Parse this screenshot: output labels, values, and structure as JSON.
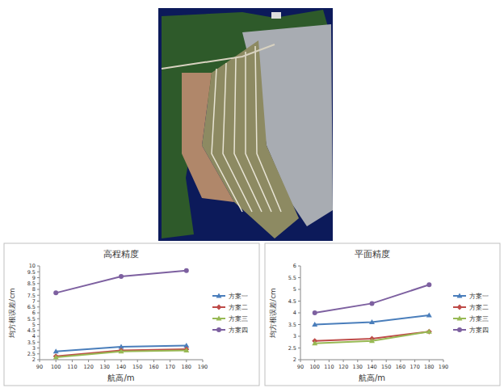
{
  "chart_data": [
    {
      "type": "line",
      "title": "高程精度",
      "x_label": "航高/m",
      "y_label": "均方根误差/cm",
      "x": [
        100,
        140,
        180
      ],
      "xlim": [
        90,
        190
      ],
      "xticks": [
        90,
        100,
        110,
        120,
        130,
        140,
        150,
        160,
        170,
        180,
        190
      ],
      "ylim": [
        2,
        10
      ],
      "yticks": [
        2,
        2.5,
        3,
        3.5,
        4,
        4.5,
        5,
        5.5,
        6,
        6.5,
        7,
        7.5,
        8,
        8.5,
        9,
        9.5,
        10
      ],
      "grid": false,
      "legend": "right",
      "series": [
        {
          "name": "方案一",
          "color": "#4a7ebb",
          "marker": "triangle",
          "values": [
            2.7,
            3.1,
            3.2
          ]
        },
        {
          "name": "方案二",
          "color": "#be4b48",
          "marker": "diamond",
          "values": [
            2.3,
            2.8,
            2.9
          ]
        },
        {
          "name": "方案三",
          "color": "#98b954",
          "marker": "triangle",
          "values": [
            2.2,
            2.7,
            2.8
          ]
        },
        {
          "name": "方案四",
          "color": "#7d60a0",
          "marker": "circle",
          "values": [
            7.7,
            9.1,
            9.6
          ]
        }
      ]
    },
    {
      "type": "line",
      "title": "平面精度",
      "x_label": "航高/m",
      "y_label": "均方根误差/cm",
      "x": [
        100,
        140,
        180
      ],
      "xlim": [
        90,
        190
      ],
      "xticks": [
        90,
        100,
        110,
        120,
        130,
        140,
        150,
        160,
        170,
        180,
        190
      ],
      "ylim": [
        2,
        6
      ],
      "yticks": [
        2,
        2.5,
        3,
        3.5,
        4,
        4.5,
        5,
        5.5,
        6
      ],
      "grid": false,
      "legend": "right",
      "series": [
        {
          "name": "方案一",
          "color": "#4a7ebb",
          "marker": "triangle",
          "values": [
            3.5,
            3.6,
            3.9
          ]
        },
        {
          "name": "方案二",
          "color": "#be4b48",
          "marker": "diamond",
          "values": [
            2.8,
            2.9,
            3.2
          ]
        },
        {
          "name": "方案三",
          "color": "#98b954",
          "marker": "triangle",
          "values": [
            2.7,
            2.8,
            3.2
          ]
        },
        {
          "name": "方案四",
          "color": "#7d60a0",
          "marker": "circle",
          "values": [
            4.0,
            4.4,
            5.2
          ]
        }
      ]
    }
  ]
}
